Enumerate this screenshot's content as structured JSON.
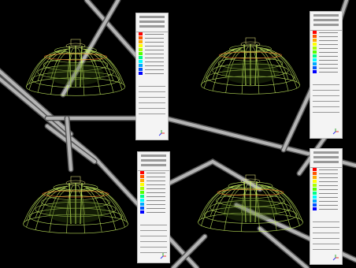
{
  "colors": {
    "background": "#000000",
    "mesh": "#c8f060",
    "rod": "#b4b4b4",
    "contour_scale": [
      "#0000ff",
      "#0055ff",
      "#00aaff",
      "#00ffff",
      "#00ff88",
      "#55ff00",
      "#aaff00",
      "#ffff00",
      "#ffaa00",
      "#ff5500",
      "#ff0000"
    ]
  },
  "panels": [
    {
      "name": "top-left"
    },
    {
      "name": "top-right"
    },
    {
      "name": "bottom-left"
    },
    {
      "name": "bottom-right"
    }
  ]
}
